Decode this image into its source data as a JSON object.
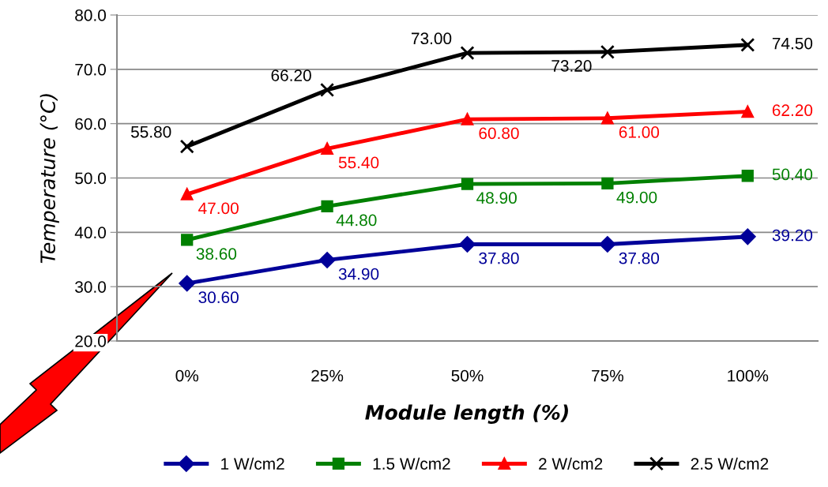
{
  "chart_data": {
    "type": "line",
    "xlabel": "Module length (%)",
    "ylabel": "Temperature (°C)",
    "categories": [
      "0%",
      "25%",
      "50%",
      "75%",
      "100%"
    ],
    "ylim": [
      20,
      80
    ],
    "yticks": [
      {
        "value": 20,
        "label": "20.0"
      },
      {
        "value": 30,
        "label": "30.0"
      },
      {
        "value": 40,
        "label": "40.0"
      },
      {
        "value": 50,
        "label": "50.0"
      },
      {
        "value": 60,
        "label": "60.0"
      },
      {
        "value": 70,
        "label": "70.0"
      },
      {
        "value": 80,
        "label": "80.0"
      }
    ],
    "grid": "y",
    "legend": "bottom",
    "series": [
      {
        "name": "1 W/cm2",
        "color": "#000099",
        "marker": "diamond",
        "values": [
          30.6,
          34.9,
          37.8,
          37.8,
          39.2
        ],
        "value_labels": [
          "30.60",
          "34.90",
          "37.80",
          "37.80",
          "39.20"
        ]
      },
      {
        "name": "1.5 W/cm2",
        "color": "#008000",
        "marker": "square",
        "values": [
          38.6,
          44.8,
          48.9,
          49.0,
          50.4
        ],
        "value_labels": [
          "38.60",
          "44.80",
          "48.90",
          "49.00",
          "50.40"
        ]
      },
      {
        "name": "2 W/cm2",
        "color": "#ff0000",
        "marker": "triangle",
        "values": [
          47.0,
          55.4,
          60.8,
          61.0,
          62.2
        ],
        "value_labels": [
          "47.00",
          "55.40",
          "60.80",
          "61.00",
          "62.20"
        ]
      },
      {
        "name": "2.5 W/cm2",
        "color": "#000000",
        "marker": "cross",
        "values": [
          55.8,
          66.2,
          73.0,
          73.2,
          74.5
        ],
        "value_labels": [
          "55.80",
          "66.20",
          "73.00",
          "73.20",
          "74.50"
        ]
      }
    ]
  }
}
